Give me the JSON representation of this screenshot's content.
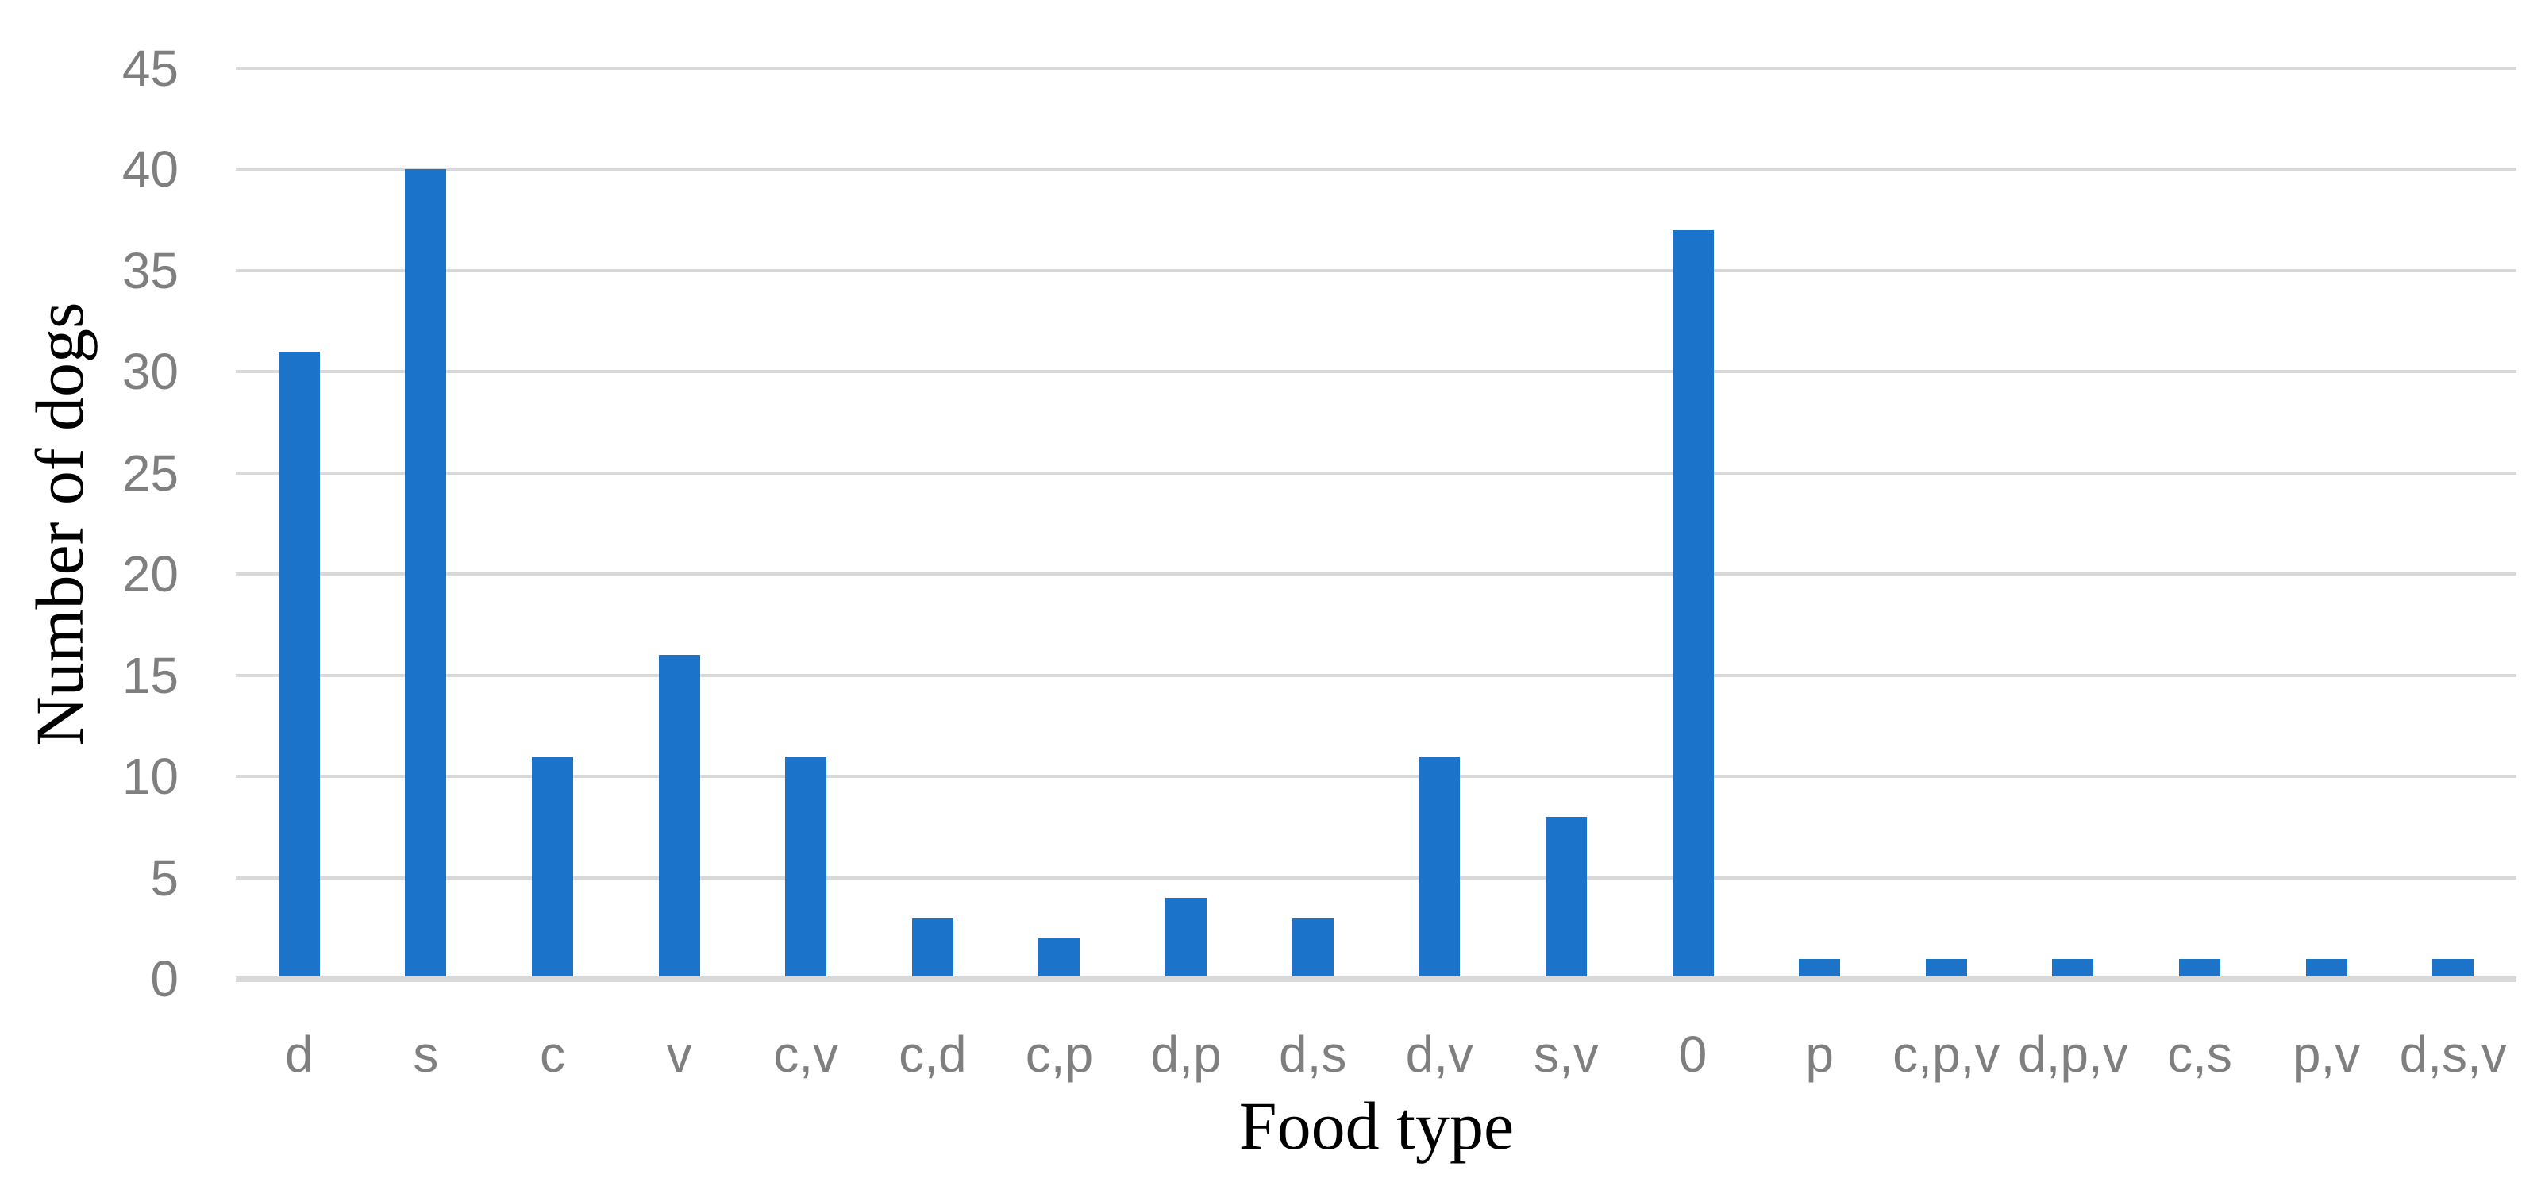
{
  "chart_data": {
    "type": "bar",
    "title": "",
    "xlabel": "Food type",
    "ylabel": "Number of dogs",
    "categories": [
      "d",
      "s",
      "c",
      "v",
      "c,v",
      "c,d",
      "c,p",
      "d,p",
      "d,s",
      "d,v",
      "s,v",
      "0",
      "p",
      "c,p,v",
      "d,p,v",
      "c,s",
      "p,v",
      "d,s,v"
    ],
    "values": [
      31,
      40,
      11,
      16,
      11,
      3,
      2,
      4,
      3,
      11,
      8,
      37,
      1,
      1,
      1,
      1,
      1,
      1
    ],
    "ylim": [
      0,
      45
    ],
    "yticks": [
      0,
      5,
      10,
      15,
      20,
      25,
      30,
      35,
      40,
      45
    ],
    "grid": "horizontal",
    "legend_position": "none",
    "colors": {
      "bar_fill": "#1b74c9",
      "gridline": "#d9d9d9",
      "axis_line": "#d9d9d9",
      "tick_label": "#7f7f7f",
      "axis_title": "#000000",
      "background": "#ffffff"
    }
  }
}
